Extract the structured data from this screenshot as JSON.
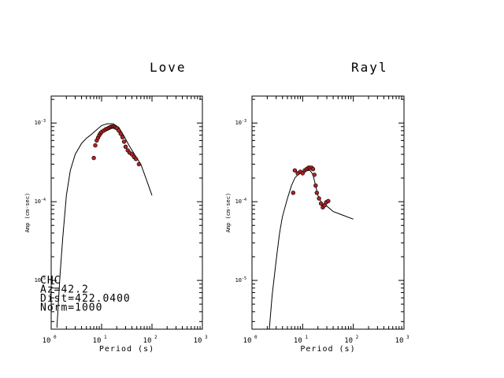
{
  "chart_data": [
    {
      "type": "line",
      "title": "Love",
      "xlabel": "Period (s)",
      "ylabel": "Amp (cm-sec)",
      "xscale": "log",
      "yscale": "log",
      "xlim": [
        1,
        1000
      ],
      "ylim": [
        2.4e-06,
        0.0022
      ],
      "x_ticks": [
        {
          "base": "10",
          "exp": "0"
        },
        {
          "base": "10",
          "exp": "1"
        },
        {
          "base": "10",
          "exp": "2"
        },
        {
          "base": "10",
          "exp": "3"
        }
      ],
      "y_ticks": [
        {
          "value": 1e-05,
          "base": "10",
          "exp": "-5"
        },
        {
          "value": 0.0001,
          "base": "10",
          "exp": "-4"
        },
        {
          "value": 0.001,
          "base": "10",
          "exp": "-3"
        }
      ],
      "series": [
        {
          "kind": "line",
          "points": [
            [
              1.3,
              2.5e-06
            ],
            [
              1.4,
              5.8e-06
            ],
            [
              1.5,
              1.2e-05
            ],
            [
              1.7,
              3.5e-05
            ],
            [
              2.0,
              0.00012
            ],
            [
              2.4,
              0.00025
            ],
            [
              3.0,
              0.0004
            ],
            [
              4.0,
              0.00055
            ],
            [
              5.0,
              0.00064
            ],
            [
              6.0,
              0.0007
            ],
            [
              8.0,
              0.00082
            ],
            [
              10.0,
              0.00093
            ],
            [
              13.0,
              0.00098
            ],
            [
              17.0,
              0.00098
            ],
            [
              22.0,
              0.00088
            ],
            [
              28.0,
              0.00068
            ],
            [
              35.0,
              0.00052
            ],
            [
              45.0,
              0.0004
            ],
            [
              60.0,
              0.0003
            ],
            [
              80.0,
              0.00018
            ],
            [
              100.0,
              0.00012
            ]
          ]
        },
        {
          "kind": "scatter",
          "color": "#b22222",
          "points": [
            [
              7.0,
              0.00036
            ],
            [
              7.5,
              0.00052
            ],
            [
              8.0,
              0.0006
            ],
            [
              8.5,
              0.00065
            ],
            [
              9.0,
              0.0007
            ],
            [
              9.5,
              0.00074
            ],
            [
              10.0,
              0.00077
            ],
            [
              11.0,
              0.0008
            ],
            [
              12.0,
              0.00083
            ],
            [
              13.0,
              0.00085
            ],
            [
              14.0,
              0.00087
            ],
            [
              15.0,
              0.00089
            ],
            [
              16.0,
              0.0009
            ],
            [
              17.0,
              0.0009
            ],
            [
              18.0,
              0.0009
            ],
            [
              19.0,
              0.00088
            ],
            [
              20.0,
              0.00086
            ],
            [
              22.0,
              0.0008
            ],
            [
              24.0,
              0.00073
            ],
            [
              26.0,
              0.00066
            ],
            [
              28.0,
              0.00058
            ],
            [
              30.0,
              0.0005
            ],
            [
              33.0,
              0.00045
            ],
            [
              36.0,
              0.00042
            ],
            [
              40.0,
              0.0004
            ],
            [
              44.0,
              0.00037
            ],
            [
              48.0,
              0.00035
            ],
            [
              55.0,
              0.0003
            ]
          ]
        }
      ],
      "annotations": [
        "CHC",
        "Az=42.2",
        "Dist=422.0400",
        "Norm=1000"
      ]
    },
    {
      "type": "line",
      "title": "Rayl",
      "xlabel": "Period (s)",
      "ylabel": "Amp (cm-sec)",
      "xscale": "log",
      "yscale": "log",
      "xlim": [
        1,
        1000
      ],
      "ylim": [
        2.4e-06,
        0.0022
      ],
      "x_ticks": [
        {
          "base": "10",
          "exp": "0"
        },
        {
          "base": "10",
          "exp": "1"
        },
        {
          "base": "10",
          "exp": "2"
        },
        {
          "base": "10",
          "exp": "3"
        }
      ],
      "y_ticks": [
        {
          "value": 1e-05,
          "base": "10",
          "exp": "-5"
        },
        {
          "value": 0.0001,
          "base": "10",
          "exp": "-4"
        },
        {
          "value": 0.001,
          "base": "10",
          "exp": "-3"
        }
      ],
      "series": [
        {
          "kind": "line",
          "points": [
            [
              2.2,
              2.4e-06
            ],
            [
              2.5,
              6.5e-06
            ],
            [
              3.0,
              1.8e-05
            ],
            [
              3.5,
              4e-05
            ],
            [
              4.0,
              6.5e-05
            ],
            [
              5.0,
              0.00011
            ],
            [
              6.0,
              0.00016
            ],
            [
              7.0,
              0.0002
            ],
            [
              8.0,
              0.00022
            ],
            [
              9.0,
              0.00023
            ],
            [
              10.0,
              0.00024
            ],
            [
              12.0,
              0.00025
            ],
            [
              14.0,
              0.00025
            ],
            [
              16.0,
              0.00022
            ],
            [
              18.0,
              0.00016
            ],
            [
              20.0,
              0.00012
            ],
            [
              24.0,
              9.5e-05
            ],
            [
              30.0,
              8.8e-05
            ],
            [
              40.0,
              7.5e-05
            ],
            [
              60.0,
              6.8e-05
            ],
            [
              100.0,
              6e-05
            ]
          ]
        },
        {
          "kind": "scatter",
          "color": "#b22222",
          "points": [
            [
              6.5,
              0.00013
            ],
            [
              7.0,
              0.00025
            ],
            [
              8.0,
              0.00023
            ],
            [
              9.0,
              0.00024
            ],
            [
              10.0,
              0.00023
            ],
            [
              11.0,
              0.00025
            ],
            [
              12.0,
              0.00026
            ],
            [
              13.0,
              0.00027
            ],
            [
              14.0,
              0.00027
            ],
            [
              15.0,
              0.00027
            ],
            [
              16.0,
              0.00026
            ],
            [
              17.0,
              0.00022
            ],
            [
              18.0,
              0.00016
            ],
            [
              19.0,
              0.00013
            ],
            [
              21.0,
              0.00011
            ],
            [
              23.0,
              9.5e-05
            ],
            [
              25.0,
              8.5e-05
            ],
            [
              27.0,
              9e-05
            ],
            [
              29.0,
              9.8e-05
            ],
            [
              32.0,
              0.000102
            ]
          ]
        }
      ],
      "annotations": []
    }
  ]
}
